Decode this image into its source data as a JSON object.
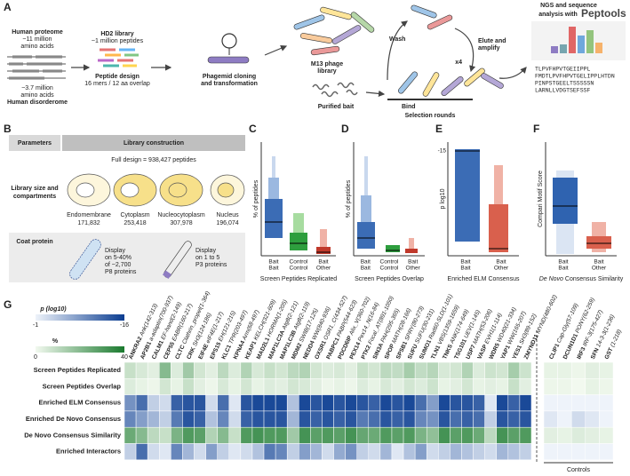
{
  "panel_a": {
    "letter": "A",
    "proteome": "Human proteome",
    "proteome_size": "~11 million",
    "proteome_unit": "amino acids",
    "disorderome_size": "~3.7 million",
    "disorderome_unit": "amino acids",
    "disorderome": "Human disorderome",
    "library": "HD2 library",
    "library_size": "~1 million peptides",
    "design": "Peptide design",
    "design_detail": "16 mers / 12 aa overlap",
    "cloning": "Phagemid cloning",
    "cloning2": "and transformation",
    "phage": "M13 phage",
    "phage2": "library",
    "bait": "Purified bait",
    "wash": "Wash",
    "elute": "Elute and",
    "elute2": "amplify",
    "rounds_x": "x4",
    "bind": "Bind",
    "selection": "Selection rounds",
    "ngs": "NGS and sequence",
    "ngs2": "analysis with",
    "tool": "Peptools",
    "sequences": [
      "TLPVFHPVTGEIIPPL",
      "FMDTLPVFHPVTGELIPPLHTDN",
      "PINPSTGEELTSSSSSN",
      "LARNLLVDGTSEFSSF"
    ]
  },
  "panel_b": {
    "letter": "B",
    "col1": "Parameters",
    "col2": "Library construction",
    "full_design": "Full design = 938,427 peptides",
    "row1": "Library size and",
    "row1b": "compartments",
    "compartments": [
      {
        "name": "Endomembrane",
        "size": "171,832"
      },
      {
        "name": "Cytoplasm",
        "size": "253,418"
      },
      {
        "name": "Nucleocytoplasm",
        "size": "307,978"
      },
      {
        "name": "Nucleus",
        "size": "196,074"
      }
    ],
    "row2": "Coat protein",
    "p8": [
      "Display",
      "on 5-40%",
      "of ~2,700",
      "P8 proteins"
    ],
    "p3": [
      "Display",
      "on 1 to 5",
      "P3 proteins"
    ]
  },
  "panels": [
    {
      "letter": "C",
      "y_label": "% of peptides",
      "categories": [
        [
          "Bait",
          "Bait"
        ],
        [
          "Control",
          "Control"
        ],
        [
          "Bait",
          "Other"
        ]
      ],
      "x_label": "Screen Peptides Replicated"
    },
    {
      "letter": "D",
      "y_label": "% of peptides",
      "categories": [
        [
          "Bait",
          "Bait"
        ],
        [
          "Control",
          "Control"
        ],
        [
          "Bait",
          "Other"
        ]
      ],
      "x_label": "Screen Peptides Overlap"
    },
    {
      "letter": "E",
      "y_label": "p log10",
      "tick": -15,
      "categories": [
        [
          "Bait",
          "Bait"
        ],
        [
          "Bait",
          "Other"
        ]
      ],
      "x_label": "Enriched ELM Consensus"
    },
    {
      "letter": "F",
      "y_label": "Compari Motif Score",
      "categories": [
        [
          "Bait",
          "Bait"
        ],
        [
          "Bait",
          "Other"
        ]
      ],
      "x_label_italic": "De Novo",
      "x_label": "Consensus Similarity"
    }
  ],
  "heatmap": {
    "letter": "G",
    "legend_p": {
      "title": "p (log10)",
      "lim": [
        -1,
        -16
      ],
      "ticks": [
        -1,
        -16
      ]
    },
    "legend_pct": {
      "title": "%",
      "lim": [
        0,
        40
      ],
      "ticks": [
        0,
        40
      ]
    },
    "controls_label": "Controls",
    "columns": [
      {
        "gene": "ANKRA2",
        "domain": "Ank(142-313)"
      },
      {
        "gene": "AP2B1",
        "domain": "a-adaptin(700-937)"
      },
      {
        "gene": "CALM1",
        "domain": "EF-hand(2-149)"
      },
      {
        "gene": "CEP55",
        "domain": "EABR(160-217)"
      },
      {
        "gene": "CLTC",
        "domain": "Clathrin_propel(1-364)"
      },
      {
        "gene": "CRK",
        "domain": "SH3(124-186)"
      },
      {
        "gene": "EIF4E",
        "domain": "eIF4E(1-217)"
      },
      {
        "gene": "EPS15",
        "domain": "EH(121-215)"
      },
      {
        "gene": "KLC1",
        "domain": "TPR(203-497)"
      },
      {
        "gene": "KPNA4",
        "domain": "Arm(68-497)"
      },
      {
        "gene": "KEAP1",
        "domain": "KELCH(321-609)"
      },
      {
        "gene": "MAD2L1",
        "domain": "HORMA(1-205)"
      },
      {
        "gene": "MAP1LC3A",
        "domain": "Atg8(2-121)"
      },
      {
        "gene": "MAP1LC3B",
        "domain": "Atg8(2-119)"
      },
      {
        "gene": "MDM2",
        "domain": "SWIB(17-125)"
      },
      {
        "gene": "NEDD4",
        "domain": "WW(840-936)"
      },
      {
        "gene": "OXSR1",
        "domain": "OSR1_C(434-527)"
      },
      {
        "gene": "PABPC1",
        "domain": "PABP(544-623)"
      },
      {
        "gene": "PDCD6IP",
        "domain": "Alix_V(360-702)"
      },
      {
        "gene": "PEX14",
        "domain": "Pex14_N(16-84)"
      },
      {
        "gene": "PTK2",
        "domain": "Focal_AT(891-1050)"
      },
      {
        "gene": "SIN3A",
        "domain": "PAH(295-365)"
      },
      {
        "gene": "SPOP",
        "domain": "MATH(28-166)"
      },
      {
        "gene": "SPSB1",
        "domain": "SPRY(80-273)"
      },
      {
        "gene": "SUFU",
        "domain": "SUFU(30-231)"
      },
      {
        "gene": "SUMO1",
        "domain": "Rad60-SLD(1-101)"
      },
      {
        "gene": "TLN1",
        "domain": "VBS(1359-1659)"
      },
      {
        "gene": "TNKS",
        "domain": "ANK(174-649)"
      },
      {
        "gene": "TSG101",
        "domain": "UEV(1-145)"
      },
      {
        "gene": "USP7",
        "domain": "MATH(53-206)"
      },
      {
        "gene": "VASP",
        "domain": "EVH1(1-114)"
      },
      {
        "gene": "WDR5",
        "domain": "WD40(21-334)"
      },
      {
        "gene": "YAP1",
        "domain": "WW(165-207)"
      },
      {
        "gene": "YES1",
        "domain": "SH3(89-152)"
      },
      {
        "gene": "ZMYND11",
        "domain": "MYND(480-602)"
      }
    ],
    "control_columns": [
      {
        "gene": "CLIP1",
        "domain": "Cap-Gly(57-109)"
      },
      {
        "gene": "DCUN1D1",
        "domain": "PONY(62-259)"
      },
      {
        "gene": "IRF3",
        "domain": "IRF-3(175-427)"
      },
      {
        "gene": "SFN",
        "domain": "14-3-3(1-236)"
      },
      {
        "gene": "GST",
        "domain": "(1-218)"
      }
    ],
    "rows": [
      {
        "label": "Screen Peptides Replicated",
        "scale": "percent",
        "values": [
          8,
          5,
          3,
          20,
          4,
          15,
          6,
          3,
          10,
          4,
          12,
          5,
          8,
          6,
          10,
          12,
          6,
          4,
          5,
          3,
          8,
          6,
          10,
          9,
          14,
          9,
          11,
          5,
          6,
          12,
          4,
          7,
          6,
          14,
          7
        ],
        "control_values": [
          2,
          2,
          1,
          3,
          2
        ]
      },
      {
        "label": "Screen Peptides Overlap",
        "scale": "percent",
        "values": [
          4,
          2,
          1,
          6,
          2,
          8,
          3,
          1,
          5,
          2,
          6,
          2,
          4,
          3,
          6,
          5,
          3,
          1,
          2,
          1,
          4,
          2,
          5,
          3,
          6,
          4,
          7,
          2,
          3,
          6,
          2,
          3,
          2,
          8,
          3
        ],
        "control_values": [
          1,
          1,
          0,
          2,
          1
        ]
      },
      {
        "label": "Enriched ELM Consensus",
        "scale": "p",
        "values": [
          -9,
          -12,
          -4,
          -3,
          -13,
          -14,
          -14,
          -3,
          -12,
          -2,
          -14,
          -15,
          -15,
          -15,
          -5,
          -15,
          -14,
          -15,
          -14,
          -15,
          -14,
          -13,
          -15,
          -14,
          -15,
          -12,
          -8,
          -15,
          -14,
          -14,
          -13,
          -2,
          -15,
          -13,
          -15
        ],
        "control_values": [
          -1,
          -1,
          -1,
          -1,
          -1
        ]
      },
      {
        "label": "Enriched De Novo Consensus",
        "scale": "p",
        "values": [
          -10,
          -8,
          -6,
          -4,
          -11,
          -14,
          -13,
          -5,
          -10,
          -3,
          -13,
          -14,
          -14,
          -14,
          -6,
          -14,
          -13,
          -14,
          -13,
          -14,
          -11,
          -12,
          -14,
          -13,
          -14,
          -10,
          -9,
          -14,
          -12,
          -13,
          -12,
          -4,
          -14,
          -13,
          -14
        ],
        "control_values": [
          -2,
          -1,
          -3,
          -2,
          -1
        ]
      },
      {
        "label": "De Novo Consensus Similarity",
        "scale": "percent",
        "values": [
          25,
          20,
          10,
          8,
          22,
          30,
          28,
          12,
          20,
          8,
          30,
          32,
          30,
          30,
          15,
          32,
          28,
          30,
          28,
          32,
          26,
          25,
          30,
          28,
          30,
          22,
          18,
          32,
          28,
          30,
          25,
          10,
          32,
          28,
          30
        ],
        "control_values": [
          3,
          2,
          4,
          3,
          2
        ]
      },
      {
        "label": "Enriched Interactors",
        "scale": "p",
        "values": [
          -4,
          -12,
          -3,
          -2,
          -10,
          -6,
          -3,
          -8,
          -4,
          -2,
          -3,
          -5,
          -11,
          -10,
          -4,
          -8,
          -6,
          -3,
          -7,
          -9,
          -4,
          -3,
          -6,
          -2,
          -5,
          -8,
          -3,
          -4,
          -6,
          -5,
          -4,
          -3,
          -6,
          -5,
          -4
        ],
        "control_values": [
          -1,
          -1,
          -1,
          -1,
          -1
        ]
      }
    ]
  }
}
